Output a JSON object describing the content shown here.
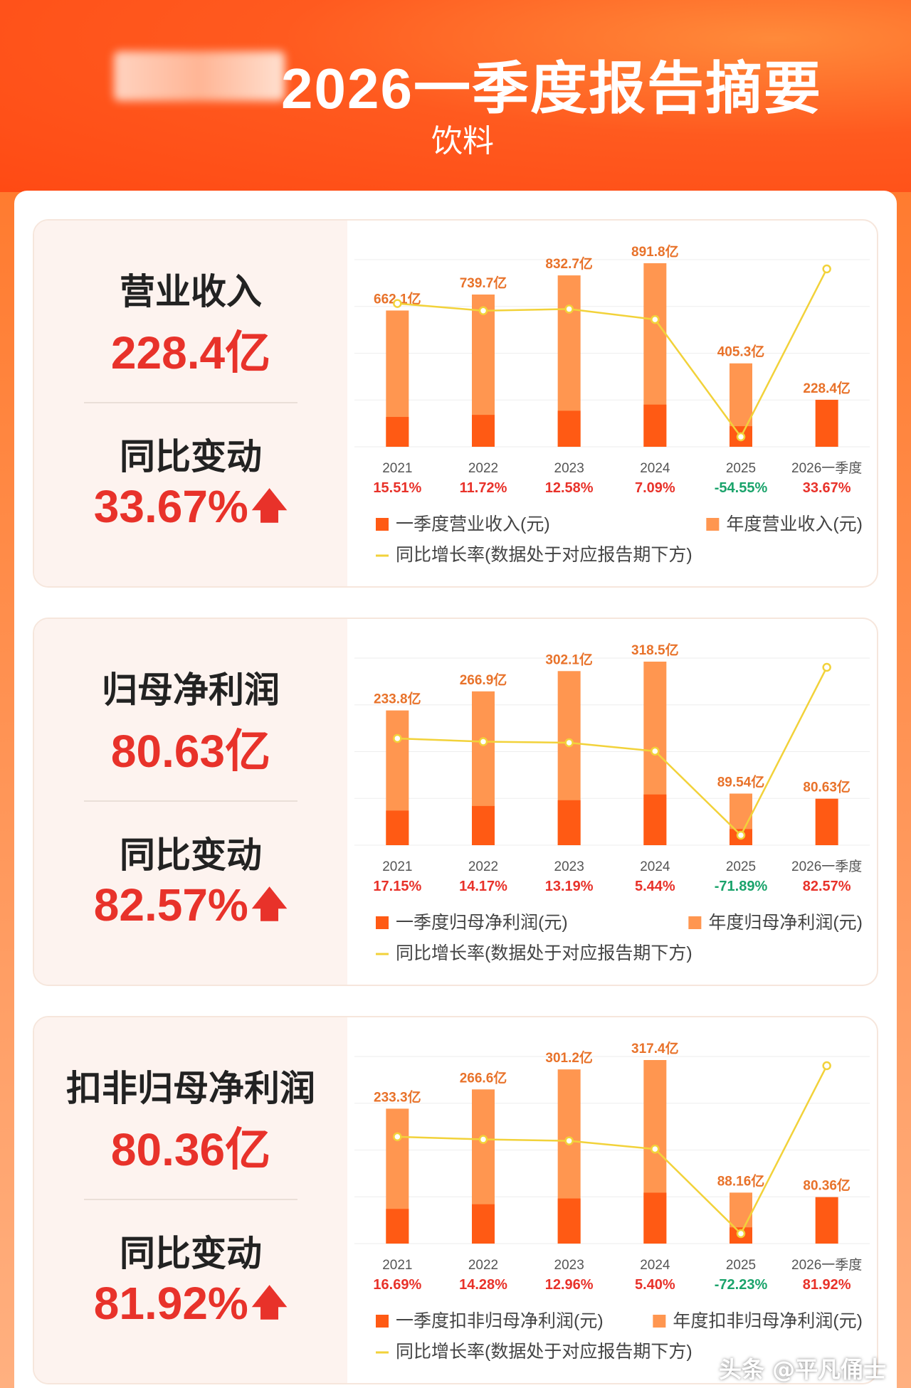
{
  "header": {
    "title": "2026一季度报告摘要",
    "subtitle": "饮料"
  },
  "colors": {
    "quarter_bar": "#ff5a14",
    "annual_bar": "#ff9650",
    "growth_line": "#f2d23a",
    "positive": "#e8322a",
    "negative": "#1aa36b"
  },
  "cards": [
    {
      "label": "营业收入",
      "value": "228.4亿",
      "yoy_label": "同比变动",
      "yoy_value": "33.67%",
      "chart_data": {
        "type": "bar",
        "categories": [
          "2021",
          "2022",
          "2023",
          "2024",
          "2025",
          "2026一季度"
        ],
        "series": [
          {
            "name": "一季度营业收入(元)",
            "values": [
              145,
              155,
              175,
              205,
              100,
              228.4
            ]
          },
          {
            "name": "年度营业收入(元)",
            "values": [
              662.1,
              739.7,
              832.7,
              891.8,
              405.3,
              null
            ]
          }
        ],
        "bar_labels": [
          "662.1亿",
          "739.7亿",
          "832.7亿",
          "891.8亿",
          "405.3亿",
          "228.4亿"
        ],
        "growth_rates": [
          15.51,
          11.72,
          12.58,
          7.09,
          -54.55,
          33.67
        ],
        "growth_labels": [
          "15.51%",
          "11.72%",
          "12.58%",
          "7.09%",
          "-54.55%",
          "33.67%"
        ],
        "legend": [
          "一季度营业收入(元)",
          "年度营业收入(元)",
          "同比增长率(数据处于对应报告期下方)"
        ]
      }
    },
    {
      "label": "归母净利润",
      "value": "80.63亿",
      "yoy_label": "同比变动",
      "yoy_value": "82.57%",
      "chart_data": {
        "type": "bar",
        "categories": [
          "2021",
          "2022",
          "2023",
          "2024",
          "2025",
          "2026一季度"
        ],
        "series": [
          {
            "name": "一季度归母净利润(元)",
            "values": [
              60,
              68,
              78,
              88,
              28,
              80.63
            ]
          },
          {
            "name": "年度归母净利润(元)",
            "values": [
              233.8,
              266.9,
              302.1,
              318.5,
              89.54,
              null
            ]
          }
        ],
        "bar_labels": [
          "233.8亿",
          "266.9亿",
          "302.1亿",
          "318.5亿",
          "89.54亿",
          "80.63亿"
        ],
        "growth_rates": [
          17.15,
          14.17,
          13.19,
          5.44,
          -71.89,
          82.57
        ],
        "growth_labels": [
          "17.15%",
          "14.17%",
          "13.19%",
          "5.44%",
          "-71.89%",
          "82.57%"
        ],
        "legend": [
          "一季度归母净利润(元)",
          "年度归母净利润(元)",
          "同比增长率(数据处于对应报告期下方)"
        ]
      }
    },
    {
      "label": "扣非归母净利润",
      "value": "80.36亿",
      "yoy_label": "同比变动",
      "yoy_value": "81.92%",
      "chart_data": {
        "type": "bar",
        "categories": [
          "2021",
          "2022",
          "2023",
          "2024",
          "2025",
          "2026一季度"
        ],
        "series": [
          {
            "name": "一季度扣非归母净利润(元)",
            "values": [
              60,
              68,
              78,
              88,
              28,
              80.36
            ]
          },
          {
            "name": "年度扣非归母净利润(元)",
            "values": [
              233.3,
              266.6,
              301.2,
              317.4,
              88.16,
              null
            ]
          }
        ],
        "bar_labels": [
          "233.3亿",
          "266.6亿",
          "301.2亿",
          "317.4亿",
          "88.16亿",
          "80.36亿"
        ],
        "growth_rates": [
          16.69,
          14.28,
          12.96,
          5.4,
          -72.23,
          81.92
        ],
        "growth_labels": [
          "16.69%",
          "14.28%",
          "12.96%",
          "5.40%",
          "-72.23%",
          "81.92%"
        ],
        "legend": [
          "一季度扣非归母净利润(元)",
          "年度扣非归母净利润(元)",
          "同比增长率(数据处于对应报告期下方)"
        ]
      }
    }
  ],
  "watermark": "头条 @平凡俑士"
}
